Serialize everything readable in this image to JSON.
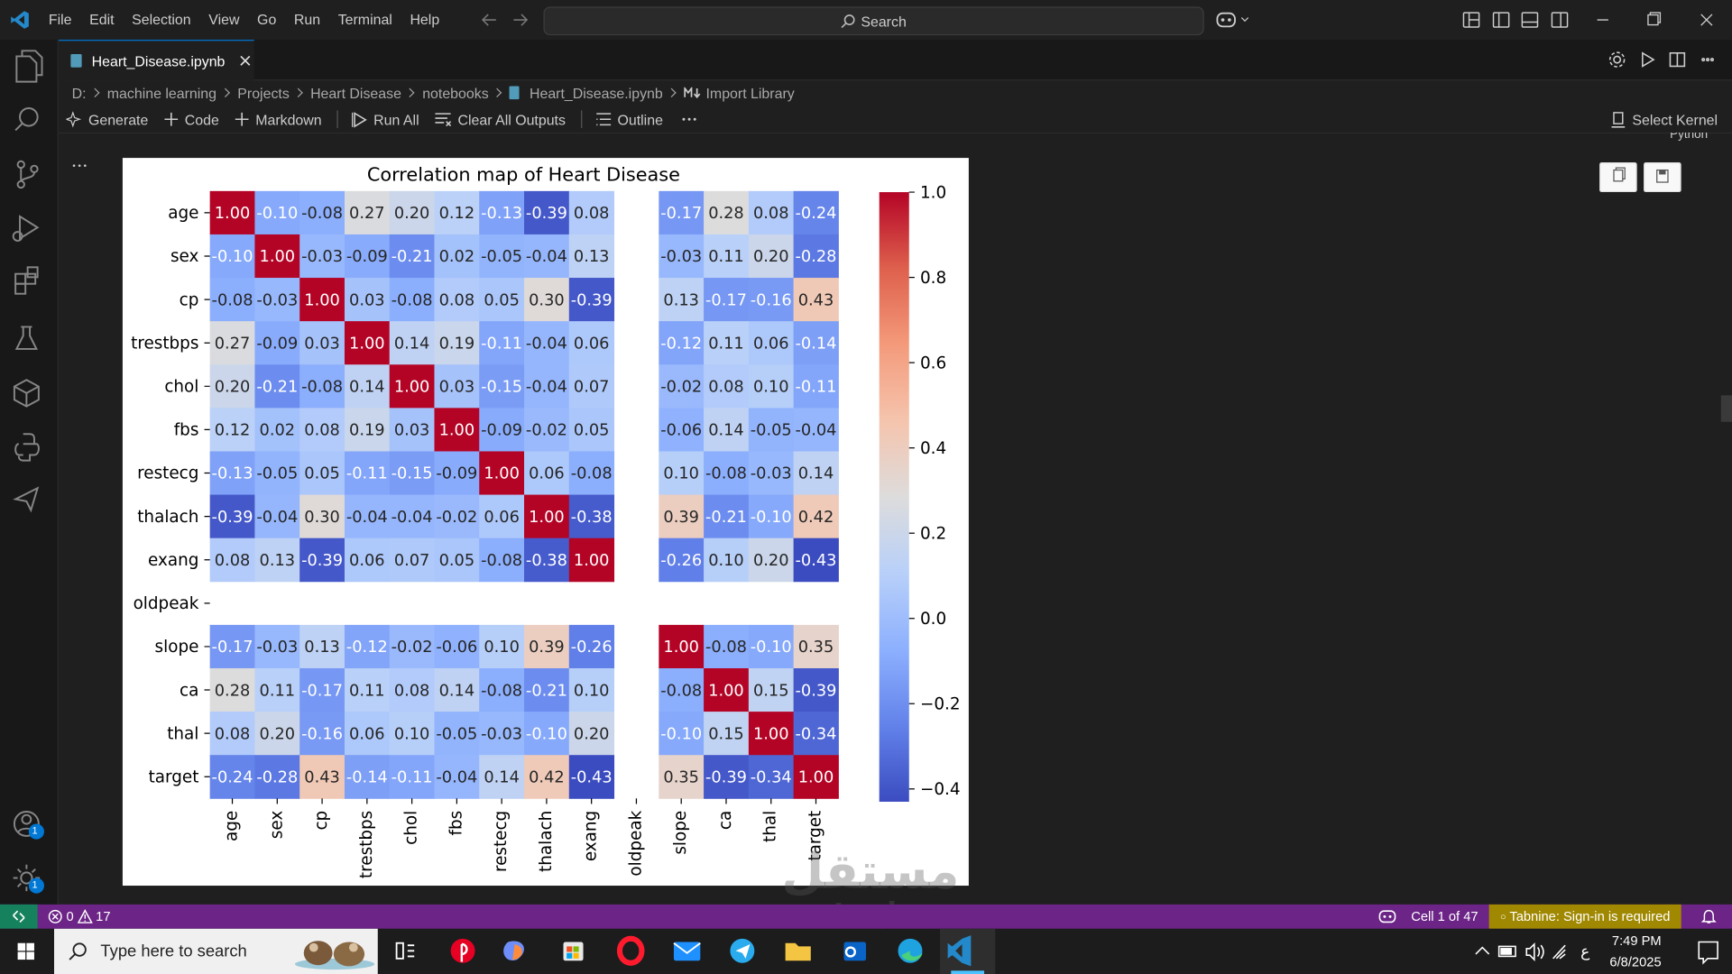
{
  "menu": [
    "File",
    "Edit",
    "Selection",
    "View",
    "Go",
    "Run",
    "Terminal",
    "Help"
  ],
  "search": "Search",
  "tab": "Heart_Disease.ipynb",
  "breadcrumb": [
    "D:",
    "machine learning",
    "Projects",
    "Heart Disease",
    "notebooks",
    "Heart_Disease.ipynb",
    "Import Library"
  ],
  "toolbar": [
    "Generate",
    "Code",
    "Markdown",
    "Run All",
    "Clear All Outputs",
    "Outline"
  ],
  "kernel": "Select Kernel",
  "cell_language": "Python",
  "activity_badges": [
    "1",
    "1"
  ],
  "status": {
    "errors": "0",
    "warnings": "17",
    "cell": "Cell 1 of 47",
    "tabnine": "Tabnine: Sign-in is required"
  },
  "taskbar": {
    "search": "Type here to search",
    "keyboard": "ع",
    "time": "7:49 PM",
    "date": "6/8/2025"
  },
  "watermark": [
    "مستقل",
    "mostaql.com"
  ],
  "chart_data": {
    "type": "heatmap",
    "title": "Correlation map of Heart Disease",
    "colormap": "coolwarm",
    "x": [
      "age",
      "sex",
      "cp",
      "trestbps",
      "chol",
      "fbs",
      "restecg",
      "thalach",
      "exang",
      "oldpeak",
      "slope",
      "ca",
      "thal",
      "target"
    ],
    "y": [
      "age",
      "sex",
      "cp",
      "trestbps",
      "chol",
      "fbs",
      "restecg",
      "thalach",
      "exang",
      "oldpeak",
      "slope",
      "ca",
      "thal",
      "target"
    ],
    "values": [
      [
        1.0,
        -0.1,
        -0.08,
        0.27,
        0.2,
        0.12,
        -0.13,
        -0.39,
        0.08,
        null,
        -0.17,
        0.28,
        0.08,
        -0.24
      ],
      [
        -0.1,
        1.0,
        -0.03,
        -0.09,
        -0.21,
        0.02,
        -0.05,
        -0.04,
        0.13,
        null,
        -0.03,
        0.11,
        0.2,
        -0.28
      ],
      [
        -0.08,
        -0.03,
        1.0,
        0.03,
        -0.08,
        0.08,
        0.05,
        0.3,
        -0.39,
        null,
        0.13,
        -0.17,
        -0.16,
        0.43
      ],
      [
        0.27,
        -0.09,
        0.03,
        1.0,
        0.14,
        0.19,
        -0.11,
        -0.04,
        0.06,
        null,
        -0.12,
        0.11,
        0.06,
        -0.14
      ],
      [
        0.2,
        -0.21,
        -0.08,
        0.14,
        1.0,
        0.03,
        -0.15,
        -0.04,
        0.07,
        null,
        -0.02,
        0.08,
        0.1,
        -0.11
      ],
      [
        0.12,
        0.02,
        0.08,
        0.19,
        0.03,
        1.0,
        -0.09,
        -0.02,
        0.05,
        null,
        -0.06,
        0.14,
        -0.05,
        -0.04
      ],
      [
        -0.13,
        -0.05,
        0.05,
        -0.11,
        -0.15,
        -0.09,
        1.0,
        0.06,
        -0.08,
        null,
        0.1,
        -0.08,
        -0.03,
        0.14
      ],
      [
        -0.39,
        -0.04,
        0.3,
        -0.04,
        -0.04,
        -0.02,
        0.06,
        1.0,
        -0.38,
        null,
        0.39,
        -0.21,
        -0.1,
        0.42
      ],
      [
        0.08,
        0.13,
        -0.39,
        0.06,
        0.07,
        0.05,
        -0.08,
        -0.38,
        1.0,
        null,
        -0.26,
        0.1,
        0.2,
        -0.43
      ],
      [
        null,
        null,
        null,
        null,
        null,
        null,
        null,
        null,
        null,
        null,
        null,
        null,
        null,
        null
      ],
      [
        -0.17,
        -0.03,
        0.13,
        -0.12,
        -0.02,
        -0.06,
        0.1,
        0.39,
        -0.26,
        null,
        1.0,
        -0.08,
        -0.1,
        0.35
      ],
      [
        0.28,
        0.11,
        -0.17,
        0.11,
        0.08,
        0.14,
        -0.08,
        -0.21,
        0.1,
        null,
        -0.08,
        1.0,
        0.15,
        -0.39
      ],
      [
        0.08,
        0.2,
        -0.16,
        0.06,
        0.1,
        -0.05,
        -0.03,
        -0.1,
        0.2,
        null,
        -0.1,
        0.15,
        1.0,
        -0.34
      ],
      [
        -0.24,
        -0.28,
        0.43,
        -0.14,
        -0.11,
        -0.04,
        0.14,
        0.42,
        -0.43,
        null,
        0.35,
        -0.39,
        -0.34,
        1.0
      ]
    ],
    "value_labels": [
      [
        "1.00",
        "-0.10",
        "-0.08",
        "0.27",
        "0.20",
        "0.12",
        "-0.13",
        "-0.39",
        "0.08",
        null,
        "-0.17",
        "0.28",
        "0.08",
        "-0.24"
      ],
      [
        "-0.10",
        "1.00",
        "-0.03",
        "-0.09",
        "-0.21",
        "0.02",
        "-0.05",
        "-0.04",
        "0.13",
        null,
        "-0.03",
        "0.11",
        "0.20",
        "-0.28"
      ],
      [
        "-0.08",
        "-0.03",
        "1.00",
        "0.03",
        "-0.08",
        "0.08",
        "0.05",
        "0.30",
        "-0.39",
        null,
        "0.13",
        "-0.17",
        "-0.16",
        "0.43"
      ],
      [
        "0.27",
        "-0.09",
        "0.03",
        "1.00",
        "0.14",
        "0.19",
        "-0.11",
        "-0.04",
        "0.06",
        null,
        "-0.12",
        "0.11",
        "0.06",
        "-0.14"
      ],
      [
        "0.20",
        "-0.21",
        "-0.08",
        "0.14",
        "1.00",
        "0.03",
        "-0.15",
        "-0.04",
        "0.07",
        null,
        "-0.02",
        "0.08",
        "0.10",
        "-0.11"
      ],
      [
        "0.12",
        "0.02",
        "0.08",
        "0.19",
        "0.03",
        "1.00",
        "-0.09",
        "-0.02",
        "0.05",
        null,
        "-0.06",
        "0.14",
        "-0.05",
        "-0.04"
      ],
      [
        "-0.13",
        "-0.05",
        "0.05",
        "-0.11",
        "-0.15",
        "-0.09",
        "1.00",
        "0.06",
        "-0.08",
        null,
        "0.10",
        "-0.08",
        "-0.03",
        "0.14"
      ],
      [
        "-0.39",
        "-0.04",
        "0.30",
        "-0.04",
        "-0.04",
        "-0.02",
        "0.06",
        "1.00",
        "-0.38",
        null,
        "0.39",
        "-0.21",
        "-0.10",
        "0.42"
      ],
      [
        "0.08",
        "0.13",
        "-0.39",
        "0.06",
        "0.07",
        "0.05",
        "-0.08",
        "-0.38",
        "1.00",
        null,
        "-0.26",
        "0.10",
        "0.20",
        "-0.43"
      ],
      [
        null,
        null,
        null,
        null,
        null,
        null,
        null,
        null,
        null,
        null,
        null,
        null,
        null,
        null
      ],
      [
        "-0.17",
        "-0.03",
        "0.13",
        "-0.12",
        "-0.02",
        "-0.06",
        "0.10",
        "0.39",
        "-0.26",
        null,
        "1.00",
        "-0.08",
        "-0.10",
        "0.35"
      ],
      [
        "0.28",
        "0.11",
        "-0.17",
        "0.11",
        "0.08",
        "0.14",
        "-0.08",
        "-0.21",
        "0.10",
        null,
        "-0.08",
        "1.00",
        "0.15",
        "-0.39"
      ],
      [
        "0.08",
        "0.20",
        "-0.16",
        "0.06",
        "0.10",
        "-0.05",
        "-0.03",
        "-0.10",
        "0.20",
        null,
        "-0.10",
        "0.15",
        "1.00",
        "-0.34"
      ],
      [
        "-0.24",
        "-0.28",
        "0.43",
        "-0.14",
        "-0.11",
        "-0.04",
        "0.14",
        "0.42",
        "-0.43",
        null,
        "0.35",
        "-0.39",
        "-0.34",
        "1.00"
      ]
    ],
    "clim": [
      -0.43,
      1.0
    ],
    "cticks": [
      {
        "value": 1.0,
        "label": "1.0"
      },
      {
        "value": 0.8,
        "label": "0.8"
      },
      {
        "value": 0.6,
        "label": "0.6"
      },
      {
        "value": 0.4,
        "label": "0.4"
      },
      {
        "value": 0.2,
        "label": "0.2"
      },
      {
        "value": 0.0,
        "label": "0.0"
      },
      {
        "value": -0.2,
        "label": "−0.2"
      },
      {
        "value": -0.4,
        "label": "−0.4"
      }
    ]
  }
}
